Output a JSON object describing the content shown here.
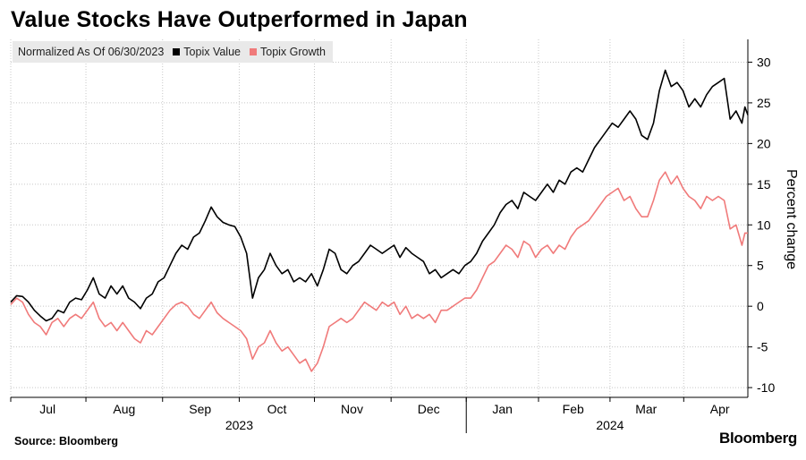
{
  "title": "Value Stocks Have Outperformed in Japan",
  "legend": {
    "note": "Normalized As Of 06/30/2023",
    "items": [
      {
        "name": "Topix Value",
        "color": "#000000"
      },
      {
        "name": "Topix Growth",
        "color": "#f07a7a"
      }
    ]
  },
  "source": "Source: Bloomberg",
  "brand": "Bloomberg",
  "chart_data": {
    "type": "line",
    "title": "Value Stocks Have Outperformed in Japan",
    "ylabel": "Percent change",
    "xlabel": "",
    "ylim": [
      -11.2,
      32.8
    ],
    "yticks": [
      -10,
      -5,
      0,
      5,
      10,
      15,
      20,
      25,
      30
    ],
    "xlim": [
      0,
      100
    ],
    "months": [
      {
        "label": "Jul",
        "x": 5.0
      },
      {
        "label": "Aug",
        "x": 15.4
      },
      {
        "label": "Sep",
        "x": 25.7
      },
      {
        "label": "Oct",
        "x": 36.1
      },
      {
        "label": "Nov",
        "x": 46.3
      },
      {
        "label": "Dec",
        "x": 56.7
      },
      {
        "label": "Jan",
        "x": 66.7
      },
      {
        "label": "Feb",
        "x": 76.3
      },
      {
        "label": "Mar",
        "x": 86.2
      },
      {
        "label": "Apr",
        "x": 96.2
      }
    ],
    "month_dividers": [
      0,
      10.2,
      20.6,
      31.0,
      41.2,
      51.6,
      61.8,
      71.6,
      81.3,
      91.3
    ],
    "year_labels": [
      {
        "label": "2023",
        "x": 31.0
      },
      {
        "label": "2024",
        "x": 81.3
      }
    ],
    "year_divider_x": 61.8,
    "series": [
      {
        "name": "Topix Value",
        "color": "#000000",
        "points": [
          [
            0,
            0.5
          ],
          [
            0.8,
            1.3
          ],
          [
            1.6,
            1.2
          ],
          [
            2.4,
            0.5
          ],
          [
            3.2,
            -0.5
          ],
          [
            4.0,
            -1.2
          ],
          [
            4.8,
            -1.8
          ],
          [
            5.6,
            -1.5
          ],
          [
            6.4,
            -0.5
          ],
          [
            7.2,
            -0.8
          ],
          [
            8.0,
            0.5
          ],
          [
            8.8,
            1.0
          ],
          [
            9.6,
            0.8
          ],
          [
            10.4,
            2.0
          ],
          [
            11.2,
            3.5
          ],
          [
            12.0,
            1.5
          ],
          [
            12.8,
            1.0
          ],
          [
            13.6,
            2.5
          ],
          [
            14.4,
            1.5
          ],
          [
            15.2,
            2.5
          ],
          [
            16.0,
            1.0
          ],
          [
            16.8,
            0.5
          ],
          [
            17.6,
            -0.3
          ],
          [
            18.4,
            1.0
          ],
          [
            19.2,
            1.5
          ],
          [
            20.0,
            3.0
          ],
          [
            20.8,
            3.5
          ],
          [
            21.6,
            5.0
          ],
          [
            22.4,
            6.5
          ],
          [
            23.2,
            7.5
          ],
          [
            24.0,
            7.0
          ],
          [
            24.8,
            8.5
          ],
          [
            25.6,
            9.0
          ],
          [
            26.4,
            10.5
          ],
          [
            27.2,
            12.2
          ],
          [
            28.0,
            11.0
          ],
          [
            28.8,
            10.3
          ],
          [
            29.6,
            10.0
          ],
          [
            30.4,
            9.8
          ],
          [
            31.2,
            8.5
          ],
          [
            32.0,
            6.5
          ],
          [
            32.8,
            1.0
          ],
          [
            33.6,
            3.5
          ],
          [
            34.4,
            4.5
          ],
          [
            35.2,
            6.5
          ],
          [
            36.0,
            5.0
          ],
          [
            36.8,
            4.0
          ],
          [
            37.6,
            4.5
          ],
          [
            38.4,
            3.0
          ],
          [
            39.2,
            3.5
          ],
          [
            40.0,
            3.0
          ],
          [
            40.8,
            4.0
          ],
          [
            41.6,
            2.5
          ],
          [
            42.4,
            4.5
          ],
          [
            43.2,
            7.0
          ],
          [
            44.0,
            6.5
          ],
          [
            44.8,
            4.5
          ],
          [
            45.6,
            4.0
          ],
          [
            46.4,
            5.0
          ],
          [
            47.2,
            5.5
          ],
          [
            48.0,
            6.5
          ],
          [
            48.8,
            7.5
          ],
          [
            49.6,
            7.0
          ],
          [
            50.4,
            6.5
          ],
          [
            51.2,
            7.0
          ],
          [
            52.0,
            7.5
          ],
          [
            52.8,
            6.0
          ],
          [
            53.6,
            7.2
          ],
          [
            54.4,
            6.5
          ],
          [
            55.2,
            6.0
          ],
          [
            56.0,
            5.5
          ],
          [
            56.8,
            4.0
          ],
          [
            57.6,
            4.5
          ],
          [
            58.4,
            3.5
          ],
          [
            59.2,
            4.0
          ],
          [
            60.0,
            4.5
          ],
          [
            60.8,
            4.0
          ],
          [
            61.6,
            5.0
          ],
          [
            62.4,
            5.5
          ],
          [
            63.2,
            6.5
          ],
          [
            64.0,
            8.0
          ],
          [
            64.8,
            9.0
          ],
          [
            65.6,
            10.0
          ],
          [
            66.4,
            11.5
          ],
          [
            67.2,
            12.5
          ],
          [
            68.0,
            13.0
          ],
          [
            68.8,
            12.0
          ],
          [
            69.6,
            14.0
          ],
          [
            70.4,
            13.5
          ],
          [
            71.2,
            13.0
          ],
          [
            72.0,
            14.0
          ],
          [
            72.8,
            15.0
          ],
          [
            73.6,
            14.0
          ],
          [
            74.4,
            15.5
          ],
          [
            75.2,
            15.0
          ],
          [
            76.0,
            16.5
          ],
          [
            76.8,
            17.0
          ],
          [
            77.6,
            16.5
          ],
          [
            78.4,
            18.0
          ],
          [
            79.2,
            19.5
          ],
          [
            80.0,
            20.5
          ],
          [
            80.8,
            21.5
          ],
          [
            81.6,
            22.5
          ],
          [
            82.4,
            22.0
          ],
          [
            83.2,
            23.0
          ],
          [
            84.0,
            24.0
          ],
          [
            84.8,
            23.0
          ],
          [
            85.6,
            21.0
          ],
          [
            86.4,
            20.5
          ],
          [
            87.2,
            22.5
          ],
          [
            88.0,
            26.5
          ],
          [
            88.8,
            29.0
          ],
          [
            89.6,
            27.0
          ],
          [
            90.4,
            27.5
          ],
          [
            91.2,
            26.5
          ],
          [
            92.0,
            24.5
          ],
          [
            92.8,
            25.5
          ],
          [
            93.6,
            24.5
          ],
          [
            94.4,
            26.0
          ],
          [
            95.2,
            27.0
          ],
          [
            96.0,
            27.5
          ],
          [
            96.8,
            28.0
          ],
          [
            97.6,
            23.0
          ],
          [
            98.4,
            24.0
          ],
          [
            99.2,
            22.5
          ],
          [
            99.6,
            24.5
          ],
          [
            100.0,
            23.5
          ]
        ]
      },
      {
        "name": "Topix Growth",
        "color": "#f07a7a",
        "points": [
          [
            0,
            0.2
          ],
          [
            0.8,
            1.0
          ],
          [
            1.6,
            0.5
          ],
          [
            2.4,
            -1.0
          ],
          [
            3.2,
            -2.0
          ],
          [
            4.0,
            -2.5
          ],
          [
            4.8,
            -3.5
          ],
          [
            5.6,
            -2.0
          ],
          [
            6.4,
            -1.5
          ],
          [
            7.2,
            -2.5
          ],
          [
            8.0,
            -1.5
          ],
          [
            8.8,
            -1.0
          ],
          [
            9.6,
            -1.5
          ],
          [
            10.4,
            -0.5
          ],
          [
            11.2,
            0.5
          ],
          [
            12.0,
            -1.5
          ],
          [
            12.8,
            -2.5
          ],
          [
            13.6,
            -2.0
          ],
          [
            14.4,
            -3.0
          ],
          [
            15.2,
            -2.0
          ],
          [
            16.0,
            -3.0
          ],
          [
            16.8,
            -4.0
          ],
          [
            17.6,
            -4.5
          ],
          [
            18.4,
            -3.0
          ],
          [
            19.2,
            -3.5
          ],
          [
            20.0,
            -2.5
          ],
          [
            20.8,
            -1.5
          ],
          [
            21.6,
            -0.5
          ],
          [
            22.4,
            0.2
          ],
          [
            23.2,
            0.5
          ],
          [
            24.0,
            0.0
          ],
          [
            24.8,
            -1.0
          ],
          [
            25.6,
            -1.5
          ],
          [
            26.4,
            -0.5
          ],
          [
            27.2,
            0.5
          ],
          [
            28.0,
            -0.8
          ],
          [
            28.8,
            -1.5
          ],
          [
            29.6,
            -2.0
          ],
          [
            30.4,
            -2.5
          ],
          [
            31.2,
            -3.0
          ],
          [
            32.0,
            -4.0
          ],
          [
            32.8,
            -6.5
          ],
          [
            33.6,
            -5.0
          ],
          [
            34.4,
            -4.5
          ],
          [
            35.2,
            -3.0
          ],
          [
            36.0,
            -4.5
          ],
          [
            36.8,
            -5.5
          ],
          [
            37.6,
            -5.0
          ],
          [
            38.4,
            -6.0
          ],
          [
            39.2,
            -7.0
          ],
          [
            40.0,
            -6.5
          ],
          [
            40.8,
            -8.0
          ],
          [
            41.6,
            -7.0
          ],
          [
            42.4,
            -5.0
          ],
          [
            43.2,
            -2.5
          ],
          [
            44.0,
            -2.0
          ],
          [
            44.8,
            -1.5
          ],
          [
            45.6,
            -2.0
          ],
          [
            46.4,
            -1.5
          ],
          [
            47.2,
            -0.5
          ],
          [
            48.0,
            0.5
          ],
          [
            48.8,
            0.0
          ],
          [
            49.6,
            -0.5
          ],
          [
            50.4,
            0.5
          ],
          [
            51.2,
            0.0
          ],
          [
            52.0,
            0.5
          ],
          [
            52.8,
            -1.0
          ],
          [
            53.6,
            0.0
          ],
          [
            54.4,
            -1.5
          ],
          [
            55.2,
            -1.0
          ],
          [
            56.0,
            -1.5
          ],
          [
            56.8,
            -1.0
          ],
          [
            57.6,
            -2.0
          ],
          [
            58.4,
            -0.5
          ],
          [
            59.2,
            -0.5
          ],
          [
            60.0,
            0.0
          ],
          [
            60.8,
            0.5
          ],
          [
            61.6,
            1.0
          ],
          [
            62.4,
            1.0
          ],
          [
            63.2,
            2.0
          ],
          [
            64.0,
            3.5
          ],
          [
            64.8,
            5.0
          ],
          [
            65.6,
            5.5
          ],
          [
            66.4,
            6.5
          ],
          [
            67.2,
            7.5
          ],
          [
            68.0,
            7.0
          ],
          [
            68.8,
            6.0
          ],
          [
            69.6,
            8.0
          ],
          [
            70.4,
            7.5
          ],
          [
            71.2,
            6.0
          ],
          [
            72.0,
            7.0
          ],
          [
            72.8,
            7.5
          ],
          [
            73.6,
            6.5
          ],
          [
            74.4,
            7.5
          ],
          [
            75.2,
            7.0
          ],
          [
            76.0,
            8.5
          ],
          [
            76.8,
            9.5
          ],
          [
            77.6,
            10.0
          ],
          [
            78.4,
            10.5
          ],
          [
            79.2,
            11.5
          ],
          [
            80.0,
            12.5
          ],
          [
            80.8,
            13.5
          ],
          [
            81.6,
            14.0
          ],
          [
            82.4,
            14.5
          ],
          [
            83.2,
            13.0
          ],
          [
            84.0,
            13.5
          ],
          [
            84.8,
            12.0
          ],
          [
            85.6,
            11.0
          ],
          [
            86.4,
            11.0
          ],
          [
            87.2,
            13.0
          ],
          [
            88.0,
            15.5
          ],
          [
            88.8,
            16.5
          ],
          [
            89.6,
            15.0
          ],
          [
            90.4,
            16.0
          ],
          [
            91.2,
            14.5
          ],
          [
            92.0,
            13.5
          ],
          [
            92.8,
            13.0
          ],
          [
            93.6,
            12.0
          ],
          [
            94.4,
            13.5
          ],
          [
            95.2,
            13.0
          ],
          [
            96.0,
            13.5
          ],
          [
            96.8,
            13.0
          ],
          [
            97.6,
            9.5
          ],
          [
            98.4,
            10.0
          ],
          [
            99.2,
            7.5
          ],
          [
            99.6,
            9.0
          ],
          [
            100.0,
            9.0
          ]
        ]
      }
    ]
  }
}
